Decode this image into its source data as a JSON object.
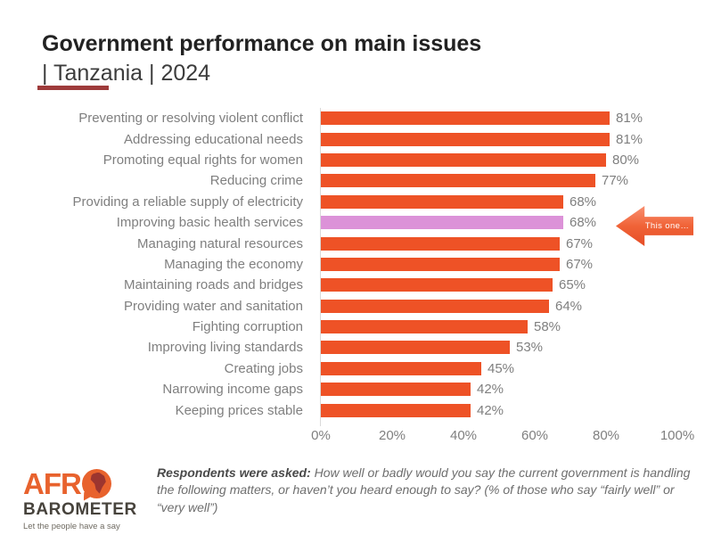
{
  "header": {
    "title_line1": "Government performance on main issues",
    "title_line2": "| Tanzania | 2024"
  },
  "chart_data": {
    "type": "bar",
    "orientation": "horizontal",
    "title": "Government performance on main issues | Tanzania | 2024",
    "categories": [
      "Preventing or resolving violent conflict",
      "Addressing educational needs",
      "Promoting equal rights for women",
      "Reducing crime",
      "Providing a reliable supply of electricity",
      "Improving basic health services",
      "Managing natural resources",
      "Managing the economy",
      "Maintaining roads and bridges",
      "Providing water and sanitation",
      "Fighting corruption",
      "Improving living standards",
      "Creating jobs",
      "Narrowing income gaps",
      "Keeping prices stable"
    ],
    "values": [
      81,
      81,
      80,
      77,
      68,
      68,
      67,
      67,
      65,
      64,
      58,
      53,
      45,
      42,
      42
    ],
    "value_suffix": "%",
    "xlim": [
      0,
      100
    ],
    "x_ticks": [
      "0%",
      "20%",
      "40%",
      "60%",
      "80%",
      "100%"
    ],
    "bar_color": "#ee5226",
    "highlight_index": 5,
    "highlight_color": "#dc92d8",
    "annotation": "This one…",
    "grid": false,
    "legend": false
  },
  "footer": {
    "bold_lead": "Respondents were asked:",
    "question": " How well or badly would you say the current government is handling the following matters, or haven’t you heard enough to say? (% of those who say “fairly well” or “very well”)"
  },
  "logo": {
    "word_top": "AFR",
    "word_bottom": "BAROMETER",
    "tagline": "Let the people have a say"
  }
}
